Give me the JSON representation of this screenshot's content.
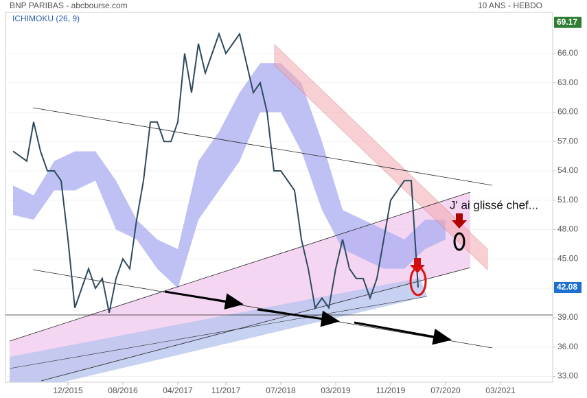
{
  "chart_data": {
    "type": "line",
    "title": "BNP PARIBAS - abcbourse.com",
    "subtitle": "10 ANS - HEBDO",
    "indicator": "ICHIMOKU (26, 9)",
    "annotation": "J' ai glissé chef...",
    "xlim": [
      "04/2015",
      "10/2021"
    ],
    "xticks": [
      "12/2015",
      "08/2016",
      "04/2017",
      "11/2017",
      "07/2018",
      "03/2019",
      "11/2019",
      "07/2020",
      "03/2021"
    ],
    "ylim": [
      32.4,
      70.2
    ],
    "yticks": [
      {
        "value": 33,
        "label": "33.00"
      },
      {
        "value": 36,
        "label": "36.00"
      },
      {
        "value": 39,
        "label": "39.00"
      },
      {
        "value": 42,
        "label": "42.00"
      },
      {
        "value": 45,
        "label": "45.00"
      },
      {
        "value": 48,
        "label": "48.00"
      },
      {
        "value": 51,
        "label": "51.00"
      },
      {
        "value": 54,
        "label": "54.00"
      },
      {
        "value": 57,
        "label": "57.00"
      },
      {
        "value": 60,
        "label": "60.00"
      },
      {
        "value": 63,
        "label": "63.00"
      },
      {
        "value": 66,
        "label": "66.00"
      }
    ],
    "markers": [
      {
        "value": 69.17,
        "color": "#2e7d32"
      },
      {
        "value": 42.08,
        "color": "#1f6fd1"
      }
    ],
    "x": [
      "04/2015",
      "05/2015",
      "06/2015",
      "07/2015",
      "08/2015",
      "09/2015",
      "10/2015",
      "11/2015",
      "12/2015",
      "01/2016",
      "02/2016",
      "03/2016",
      "04/2016",
      "05/2016",
      "06/2016",
      "07/2016",
      "08/2016",
      "09/2016",
      "10/2016",
      "11/2016",
      "12/2016",
      "01/2017",
      "02/2017",
      "03/2017",
      "04/2017",
      "05/2017",
      "06/2017",
      "07/2017",
      "08/2017",
      "09/2017",
      "10/2017",
      "11/2017",
      "12/2017",
      "01/2018",
      "02/2018",
      "03/2018",
      "04/2018",
      "05/2018",
      "06/2018",
      "07/2018",
      "08/2018",
      "09/2018",
      "10/2018",
      "11/2018",
      "12/2018",
      "01/2019",
      "02/2019",
      "03/2019",
      "04/2019",
      "05/2019",
      "06/2019",
      "07/2019",
      "08/2019",
      "09/2019",
      "10/2019",
      "11/2019",
      "12/2019",
      "01/2020",
      "02/2020",
      "03/2020"
    ],
    "series": [
      {
        "name": "BNP PARIBAS",
        "color": "#2c4a5e",
        "values": [
          56,
          55.5,
          55,
          59,
          56,
          54,
          54,
          53,
          47,
          40,
          42,
          44,
          42,
          43,
          39.5,
          43,
          45,
          44,
          49,
          53,
          59,
          59,
          57,
          57,
          59,
          66,
          62,
          67,
          64,
          66,
          68,
          66,
          67,
          68,
          65,
          62,
          63,
          60,
          54,
          54,
          53,
          52,
          47,
          44,
          40,
          41,
          40,
          44,
          47,
          44,
          43,
          43,
          41,
          43,
          47,
          51,
          52,
          53,
          53,
          42.08
        ]
      }
    ],
    "cloud": {
      "color": "#a9acf2",
      "x": [
        "04/2015",
        "07/2015",
        "10/2015",
        "01/2016",
        "04/2016",
        "07/2016",
        "10/2016",
        "01/2017",
        "04/2017",
        "07/2017",
        "10/2017",
        "01/2018",
        "04/2018",
        "07/2018",
        "10/2018",
        "01/2019",
        "04/2019",
        "07/2019",
        "10/2019",
        "01/2020",
        "04/2020",
        "07/2020"
      ],
      "lower": [
        49.5,
        49,
        52,
        52,
        53,
        48,
        47,
        44,
        42,
        49,
        52,
        55,
        60,
        60,
        56,
        50,
        46,
        45,
        44,
        44,
        46,
        47
      ],
      "upper": [
        52.5,
        51.5,
        55,
        56,
        56,
        53,
        49,
        47,
        46,
        55,
        58,
        62,
        65,
        65,
        63,
        57,
        50,
        49,
        48,
        47,
        49,
        49
      ]
    }
  }
}
